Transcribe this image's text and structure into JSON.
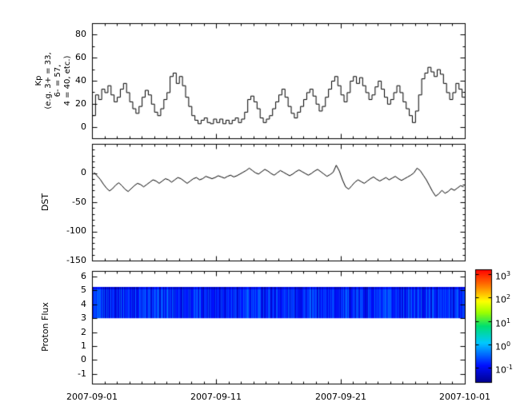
{
  "figure": {
    "background": "#ffffff",
    "axis_color": "#000000",
    "line_color": "#000000"
  },
  "xaxis": {
    "tick_labels": [
      "2007-09-01",
      "2007-09-11",
      "2007-09-21",
      "2007-10-01"
    ],
    "tick_positions_days": [
      0,
      10,
      20,
      30
    ],
    "minor_step_days": 1,
    "range_days": [
      0,
      30
    ]
  },
  "chart_data": [
    {
      "type": "line",
      "subtype": "step",
      "name": "Kp",
      "ylabel_lines": [
        "Kp",
        "(e.g. 3+ = 33,",
        "6- = 57,",
        "4 = 40, etc.)"
      ],
      "ytick_labels": [
        "80",
        "60",
        "40",
        "20",
        "0"
      ],
      "yticks": [
        80,
        60,
        40,
        20,
        0
      ],
      "ylim": [
        -10,
        90
      ],
      "minor_step": 10,
      "x_days": 30,
      "values": [
        10,
        28,
        24,
        33,
        30,
        36,
        28,
        22,
        26,
        33,
        38,
        30,
        22,
        16,
        12,
        18,
        26,
        32,
        28,
        20,
        13,
        10,
        16,
        24,
        30,
        44,
        47,
        38,
        44,
        36,
        26,
        18,
        10,
        6,
        3,
        6,
        8,
        4,
        3,
        7,
        4,
        7,
        3,
        6,
        3,
        6,
        8,
        4,
        7,
        13,
        24,
        27,
        22,
        16,
        8,
        4,
        7,
        10,
        16,
        22,
        28,
        33,
        26,
        18,
        12,
        8,
        13,
        18,
        24,
        30,
        33,
        27,
        20,
        14,
        18,
        26,
        33,
        40,
        44,
        36,
        28,
        22,
        30,
        40,
        44,
        38,
        43,
        36,
        30,
        24,
        28,
        35,
        40,
        33,
        26,
        20,
        24,
        30,
        36,
        30,
        22,
        16,
        10,
        4,
        14,
        28,
        42,
        47,
        52,
        48,
        44,
        50,
        46,
        38,
        30,
        24,
        30,
        38,
        33,
        26
      ]
    },
    {
      "type": "line",
      "name": "DST",
      "ylabel": "DST",
      "ytick_labels": [
        "0",
        "-50",
        "-100",
        "-150"
      ],
      "yticks": [
        0,
        -50,
        -100,
        -150
      ],
      "ylim": [
        -150,
        50
      ],
      "minor_step": 10,
      "x_days": 30,
      "values": [
        2,
        -4,
        -10,
        -18,
        -25,
        -30,
        -26,
        -20,
        -16,
        -21,
        -27,
        -31,
        -26,
        -21,
        -17,
        -19,
        -23,
        -19,
        -15,
        -11,
        -13,
        -17,
        -13,
        -9,
        -11,
        -15,
        -11,
        -7,
        -9,
        -13,
        -17,
        -13,
        -9,
        -7,
        -11,
        -9,
        -5,
        -7,
        -9,
        -7,
        -4,
        -6,
        -8,
        -5,
        -3,
        -6,
        -4,
        -1,
        2,
        5,
        9,
        5,
        1,
        -1,
        3,
        7,
        4,
        0,
        -3,
        1,
        5,
        2,
        -1,
        -4,
        -1,
        3,
        6,
        3,
        0,
        -3,
        0,
        4,
        7,
        3,
        -1,
        -5,
        -2,
        2,
        14,
        4,
        -11,
        -23,
        -27,
        -21,
        -15,
        -11,
        -14,
        -17,
        -13,
        -9,
        -6,
        -10,
        -13,
        -10,
        -7,
        -11,
        -8,
        -5,
        -9,
        -12,
        -9,
        -6,
        -3,
        1,
        9,
        5,
        -3,
        -11,
        -21,
        -31,
        -39,
        -35,
        -29,
        -34,
        -31,
        -26,
        -29,
        -25,
        -21,
        -23
      ]
    },
    {
      "type": "heatmap",
      "name": "Proton Flux",
      "ylabel": "Proton Flux",
      "ytick_labels": [
        "6",
        "5",
        "4",
        "3",
        "2",
        "1",
        "0",
        "-1"
      ],
      "yticks": [
        6,
        5,
        4,
        3,
        2,
        1,
        0,
        -1
      ],
      "ylim": [
        -1.7,
        6.4
      ],
      "band": {
        "y_min": 3.0,
        "y_max": 5.25,
        "flux_min": 0.07,
        "flux_max": 0.4
      },
      "colorbar": {
        "scale": "log",
        "log_min": -1.6,
        "log_max": 3.2,
        "tick_base": "10",
        "tick_exponents": [
          "3",
          "2",
          "1",
          "0",
          "-1"
        ],
        "stops": [
          [
            0.0,
            "#00008f"
          ],
          [
            0.15,
            "#0010ff"
          ],
          [
            0.35,
            "#00c8ff"
          ],
          [
            0.5,
            "#00e070"
          ],
          [
            0.62,
            "#9cff00"
          ],
          [
            0.72,
            "#ffff00"
          ],
          [
            0.86,
            "#ff7800"
          ],
          [
            1.0,
            "#ff0000"
          ]
        ]
      }
    }
  ]
}
